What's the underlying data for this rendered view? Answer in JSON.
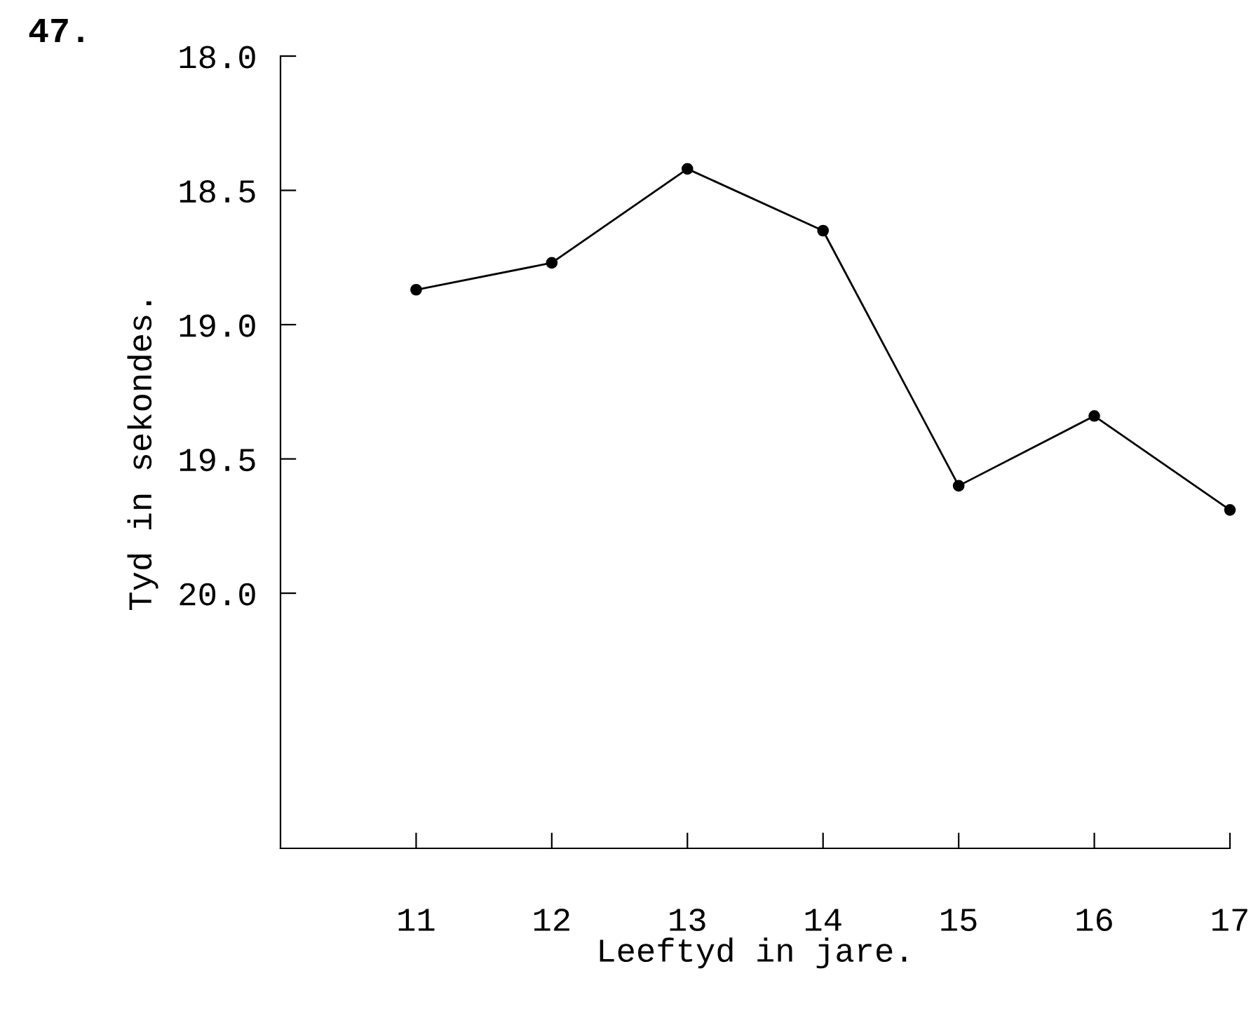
{
  "chart_data": {
    "type": "line",
    "title": "47.",
    "xlabel": "Leeftyd in jare.",
    "ylabel": "Tyd in sekondes.",
    "x": [
      11,
      12,
      13,
      14,
      15,
      16,
      17
    ],
    "values": [
      18.87,
      18.77,
      18.42,
      18.65,
      19.6,
      19.34,
      19.69
    ],
    "color": "#000000",
    "marker": "circle",
    "line_style": "solid",
    "xlim": [
      10,
      17
    ],
    "xticks": [
      11,
      12,
      13,
      14,
      15,
      16,
      17
    ],
    "ylim": [
      20.95,
      18.0
    ],
    "yticks": [
      {
        "value": 18.0,
        "label": "18.0"
      },
      18.5,
      {
        "value": 19.0,
        "label": "19.0"
      },
      19.5,
      {
        "value": 20.0,
        "label": "20.0"
      }
    ],
    "grid": false,
    "legend": false
  }
}
